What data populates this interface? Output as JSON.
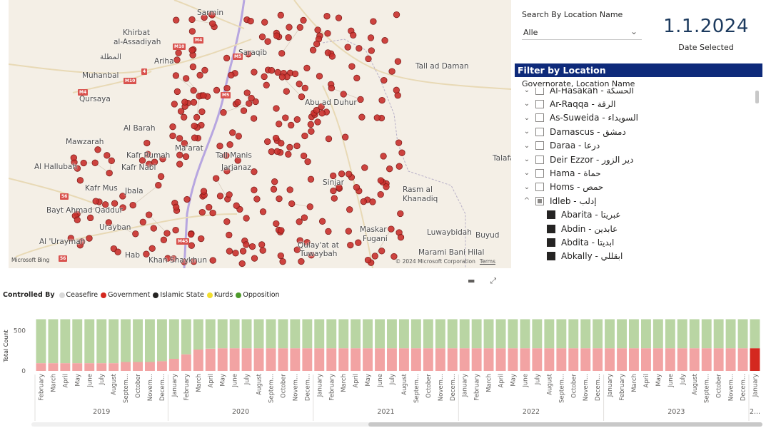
{
  "map": {
    "labels": [
      {
        "text": "Sarmin",
        "x": 264,
        "y": 20
      },
      {
        "text": "Saraqib",
        "x": 322,
        "y": 76
      },
      {
        "text": "Khirbat",
        "x": 160,
        "y": 48
      },
      {
        "text": "al-Assadiyah",
        "x": 147,
        "y": 61
      },
      {
        "text": "المطلة",
        "x": 128,
        "y": 82
      },
      {
        "text": "Ariha",
        "x": 204,
        "y": 88
      },
      {
        "text": "Muhanbal",
        "x": 103,
        "y": 108
      },
      {
        "text": "Qursaya",
        "x": 99,
        "y": 141
      },
      {
        "text": "Al Barah",
        "x": 161,
        "y": 182
      },
      {
        "text": "Mawzarah",
        "x": 80,
        "y": 201
      },
      {
        "text": "Kafr Rumah",
        "x": 165,
        "y": 220
      },
      {
        "text": "Al Hallubah",
        "x": 36,
        "y": 236
      },
      {
        "text": "Kafr Nabl",
        "x": 158,
        "y": 237
      },
      {
        "text": "Kafr Mus",
        "x": 107,
        "y": 266
      },
      {
        "text": "Jbala",
        "x": 163,
        "y": 270
      },
      {
        "text": "Bayt Ahmad Qaddur",
        "x": 53,
        "y": 297
      },
      {
        "text": "Urayban",
        "x": 127,
        "y": 321
      },
      {
        "text": "Al 'Uraymah",
        "x": 43,
        "y": 341
      },
      {
        "text": "Hab",
        "x": 163,
        "y": 360
      },
      {
        "text": "Khan Shaykhun",
        "x": 196,
        "y": 367
      },
      {
        "text": "Ma'arat",
        "x": 233,
        "y": 210
      },
      {
        "text": "Tall Manis",
        "x": 290,
        "y": 220
      },
      {
        "text": "Jarjanaz",
        "x": 298,
        "y": 237
      },
      {
        "text": "Abu ad Duhur",
        "x": 415,
        "y": 146
      },
      {
        "text": "Tall ad Daman",
        "x": 570,
        "y": 95
      },
      {
        "text": "Sinjar",
        "x": 440,
        "y": 258
      },
      {
        "text": "Rasm al",
        "x": 552,
        "y": 268
      },
      {
        "text": "Khanadiq",
        "x": 552,
        "y": 281
      },
      {
        "text": "Maskar",
        "x": 492,
        "y": 324
      },
      {
        "text": "Fugani",
        "x": 496,
        "y": 337
      },
      {
        "text": "Luwaybidah",
        "x": 586,
        "y": 328
      },
      {
        "text": "Buyud",
        "x": 654,
        "y": 332
      },
      {
        "text": "Qulay'at at",
        "x": 405,
        "y": 346
      },
      {
        "text": "Tuwaybah",
        "x": 408,
        "y": 358
      },
      {
        "text": "Marami Bani Hilal",
        "x": 574,
        "y": 356
      },
      {
        "text": "Talafa",
        "x": 678,
        "y": 224
      }
    ],
    "road_badges": [
      {
        "text": "M4",
        "x": 259,
        "y": 57
      },
      {
        "text": "M10",
        "x": 230,
        "y": 66
      },
      {
        "text": "M5",
        "x": 314,
        "y": 80
      },
      {
        "text": "4",
        "x": 186,
        "y": 101
      },
      {
        "text": "M10",
        "x": 161,
        "y": 114
      },
      {
        "text": "M4",
        "x": 97,
        "y": 130
      },
      {
        "text": "M5",
        "x": 297,
        "y": 134
      },
      {
        "text": "56",
        "x": 72,
        "y": 276
      },
      {
        "text": "M45",
        "x": 235,
        "y": 339
      },
      {
        "text": "56",
        "x": 70,
        "y": 363
      }
    ],
    "bing_logo": "Microsoft Bing",
    "copyright": "© 2024 Microsoft Corporation",
    "terms": "Terms",
    "marker_color": "#c9302c"
  },
  "search": {
    "label": "Search By Location Name",
    "value": "Alle"
  },
  "date_card": {
    "value": "1.1.2024",
    "label": "Date Selected"
  },
  "filter": {
    "title": "Filter by Location",
    "subtitle": "Governorate, Location Name",
    "governorates": [
      {
        "label": "Al-Hasakah - الحسكة",
        "expander": "⌄",
        "state": "empty"
      },
      {
        "label": "Ar-Raqqa - الرقة",
        "expander": "⌄",
        "state": "empty"
      },
      {
        "label": "As-Suweida - السويداء",
        "expander": "⌄",
        "state": "empty"
      },
      {
        "label": "Damascus - دمشق",
        "expander": "⌄",
        "state": "empty"
      },
      {
        "label": "Daraa - درعا",
        "expander": "⌄",
        "state": "empty"
      },
      {
        "label": "Deir Ezzor - دير الزور",
        "expander": "⌄",
        "state": "empty"
      },
      {
        "label": "Hama - حماة",
        "expander": "⌄",
        "state": "empty"
      },
      {
        "label": "Homs - حمص",
        "expander": "⌄",
        "state": "empty"
      },
      {
        "label": "Idleb - إدلب",
        "expander": "^",
        "state": "partial"
      }
    ],
    "locations": [
      {
        "label": "Abarita - عبريتا",
        "state": "checked"
      },
      {
        "label": "Abdin - عابدين",
        "state": "checked"
      },
      {
        "label": "Abdita - ابديتا",
        "state": "checked"
      },
      {
        "label": "Abkally - ابقللي",
        "state": "checked"
      }
    ]
  },
  "legend": {
    "title": "Controlled By",
    "items": [
      {
        "label": "Ceasefire",
        "color": "#d9d9d9"
      },
      {
        "label": "Government",
        "color": "#d4281f"
      },
      {
        "label": "Islamic State",
        "color": "#252423"
      },
      {
        "label": "Kurds",
        "color": "#f2de2e"
      },
      {
        "label": "Opposition",
        "color": "#4d9a2a"
      }
    ]
  },
  "chart_data": {
    "type": "bar",
    "stacked": true,
    "ylabel": "Total Count",
    "yticks": [
      0,
      500
    ],
    "ylim": [
      0,
      680
    ],
    "months": [
      "February",
      "March",
      "April",
      "May",
      "June",
      "July",
      "August",
      "Septem...",
      "October",
      "Novem...",
      "Decem...",
      "January",
      "February",
      "March",
      "April",
      "May",
      "June",
      "July",
      "August",
      "Septem...",
      "October",
      "Novem...",
      "Decem...",
      "January",
      "February",
      "March",
      "April",
      "May",
      "June",
      "July",
      "August",
      "Septem...",
      "October",
      "Novem...",
      "Decem...",
      "January",
      "February",
      "March",
      "April",
      "May",
      "June",
      "July",
      "August",
      "Septem...",
      "October",
      "Novem...",
      "Decem...",
      "January",
      "February",
      "March",
      "April",
      "May",
      "June",
      "July",
      "August",
      "Septem...",
      "October",
      "Novem...",
      "Decem...",
      "January"
    ],
    "years": [
      {
        "label": "2019",
        "start": 0,
        "count": 11
      },
      {
        "label": "2020",
        "start": 11,
        "count": 12
      },
      {
        "label": "2021",
        "start": 23,
        "count": 12
      },
      {
        "label": "2022",
        "start": 35,
        "count": 12
      },
      {
        "label": "2023",
        "start": 47,
        "count": 12
      },
      {
        "label": "2...",
        "start": 59,
        "count": 1
      }
    ],
    "total": 640,
    "series": [
      {
        "name": "Government",
        "values": [
          95,
          95,
          95,
          95,
          95,
          95,
          95,
          110,
          110,
          110,
          120,
          150,
          205,
          265,
          275,
          280,
          280,
          280,
          280,
          280,
          280,
          280,
          280,
          280,
          280,
          280,
          280,
          280,
          280,
          280,
          280,
          280,
          280,
          280,
          280,
          280,
          280,
          280,
          280,
          280,
          280,
          280,
          280,
          280,
          280,
          280,
          280,
          280,
          280,
          280,
          280,
          280,
          280,
          280,
          280,
          280,
          280,
          280,
          280,
          280
        ]
      },
      {
        "name": "Opposition",
        "values": [
          545,
          545,
          545,
          545,
          545,
          545,
          545,
          530,
          530,
          530,
          520,
          490,
          435,
          375,
          365,
          360,
          360,
          360,
          360,
          360,
          360,
          360,
          360,
          360,
          360,
          360,
          360,
          360,
          360,
          360,
          360,
          360,
          360,
          360,
          360,
          360,
          360,
          360,
          360,
          360,
          360,
          360,
          360,
          360,
          360,
          360,
          360,
          360,
          360,
          360,
          360,
          360,
          360,
          360,
          360,
          360,
          360,
          360,
          360,
          360
        ]
      }
    ],
    "highlight_index": 59,
    "colors": {
      "government": "#f2a3a3",
      "government_highlight": "#d4281f",
      "opposition": "#b9d5a3",
      "opposition_highlight": "#b9d5a3"
    }
  }
}
